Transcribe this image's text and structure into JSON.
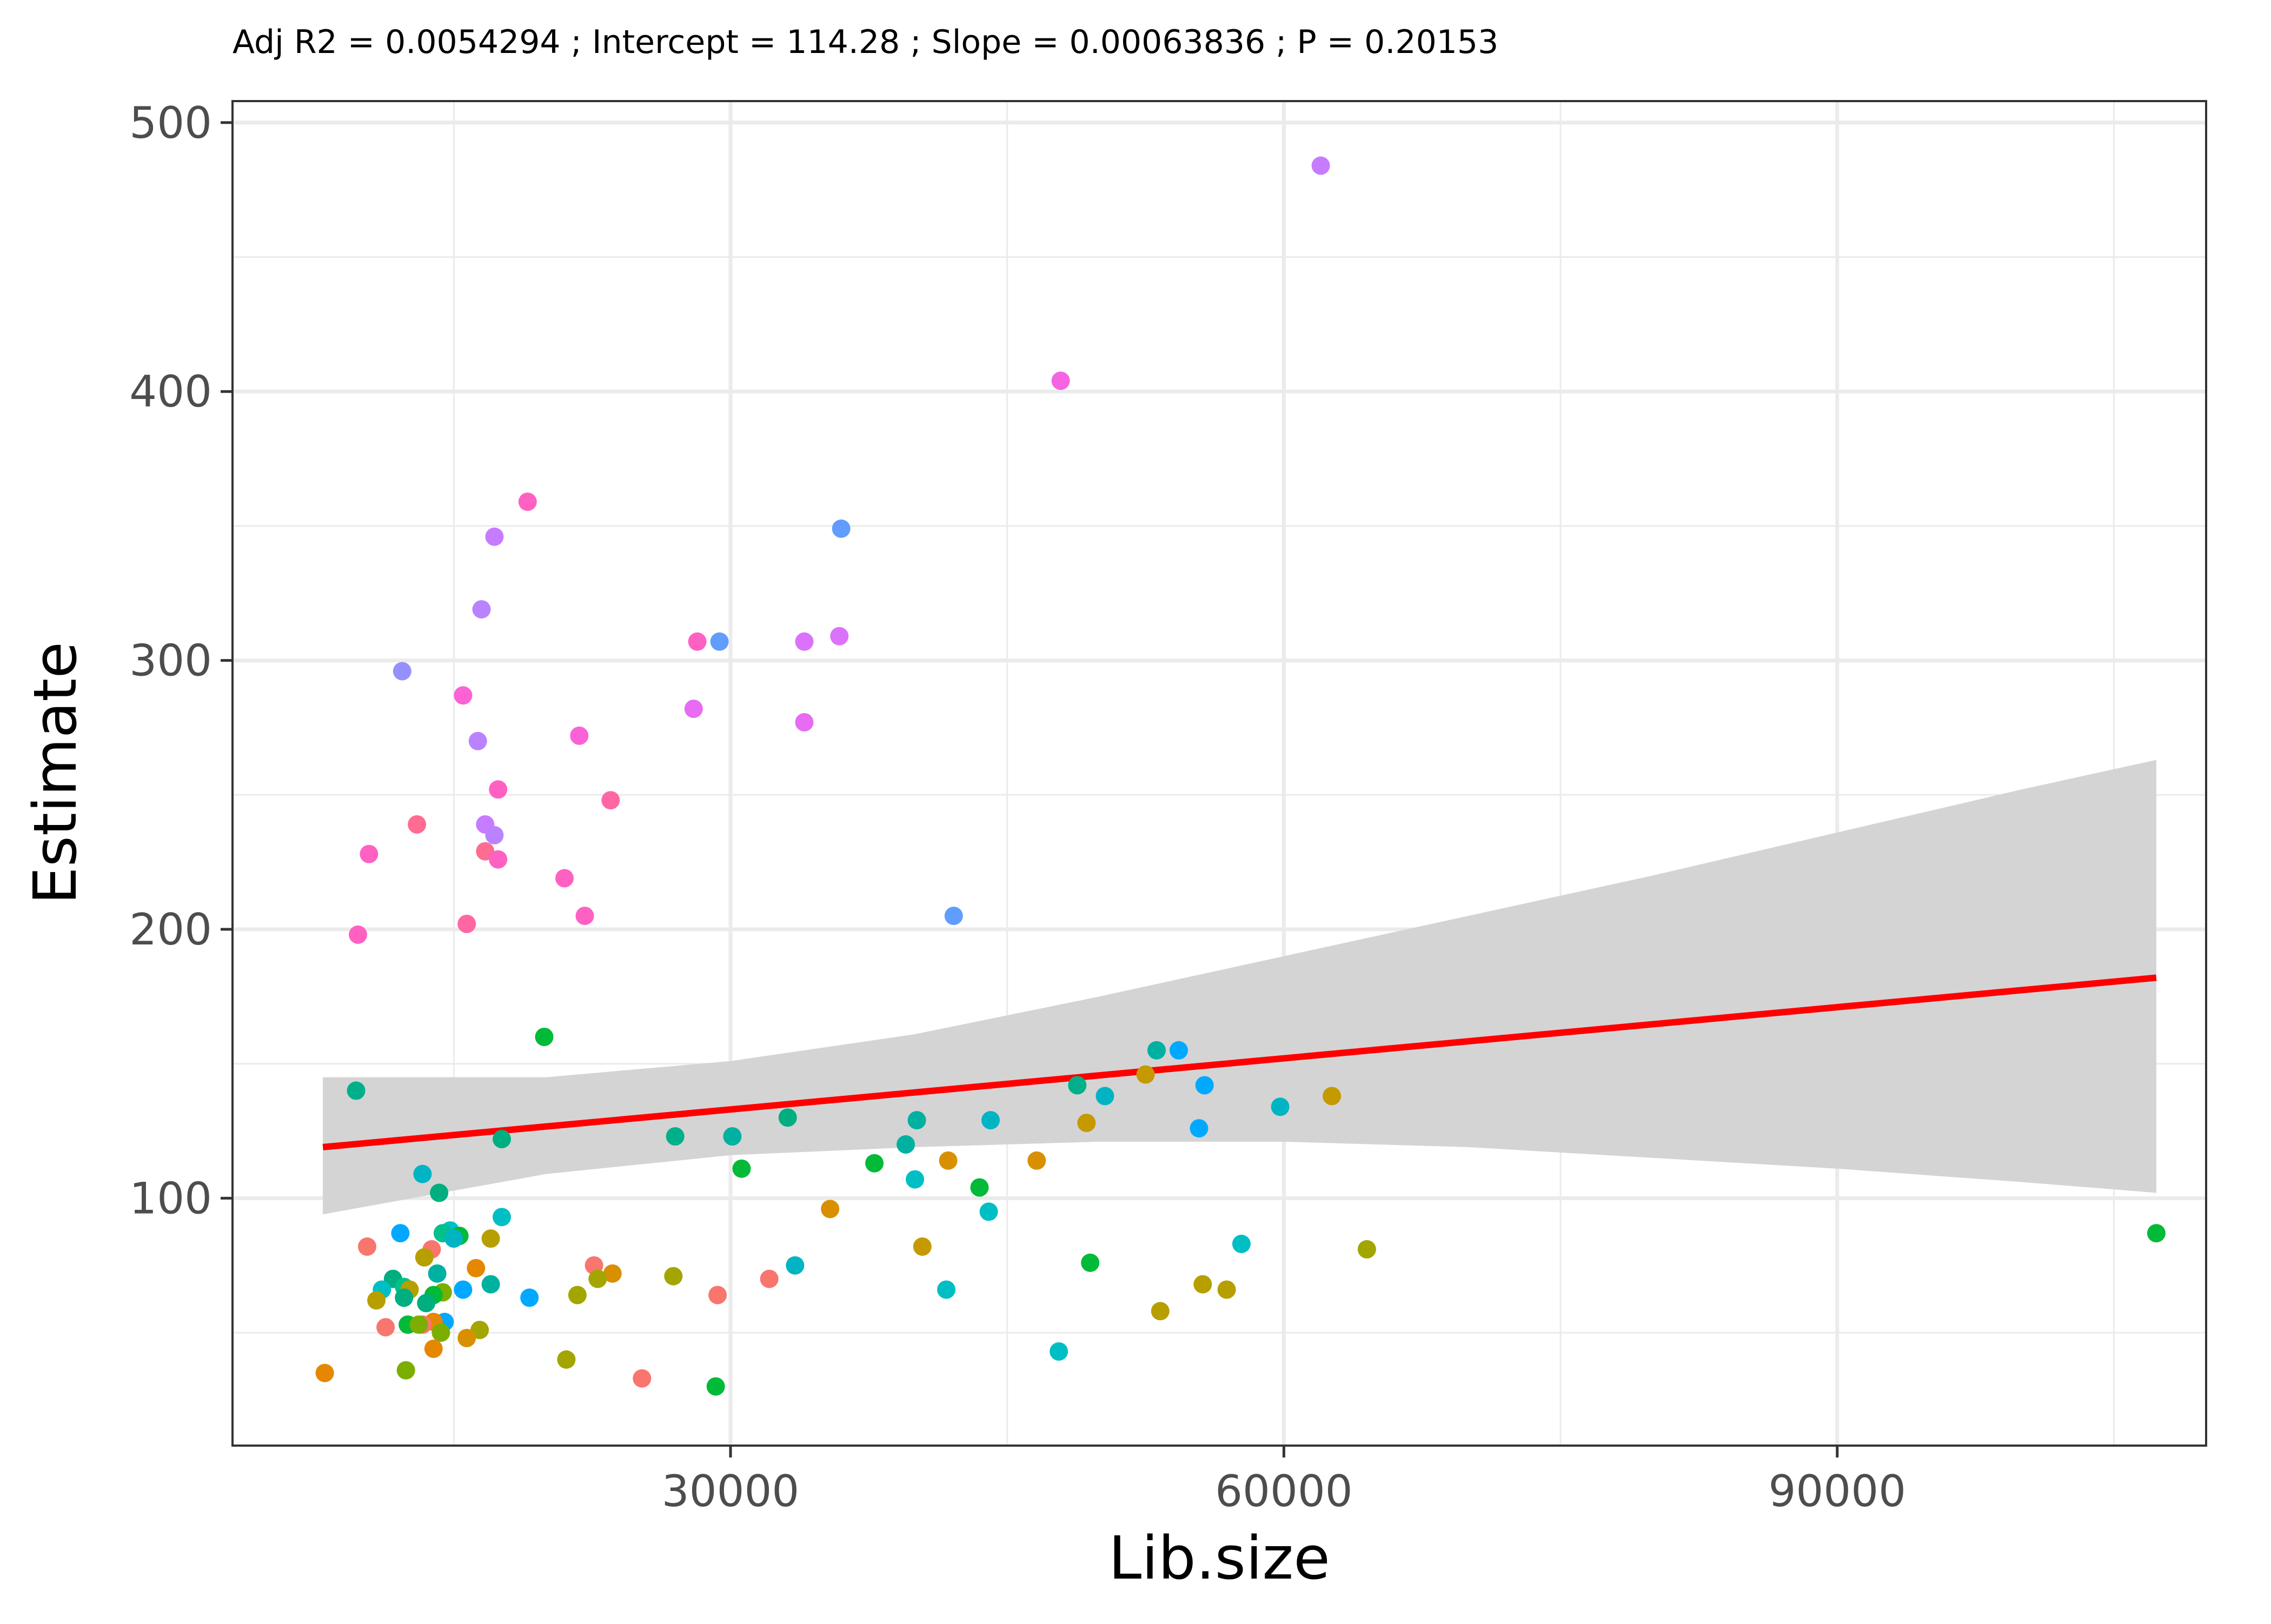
{
  "chart_data": {
    "type": "scatter",
    "title": "Adj R2 =  0.0054294 ; Intercept = 114.28 ; Slope = 0.00063836 ; P = 0.20153",
    "xlabel": "Lib.size",
    "ylabel": "Estimate",
    "xlim": [
      3000,
      110000
    ],
    "ylim": [
      8,
      508
    ],
    "x_ticks": [
      30000,
      60000,
      90000
    ],
    "y_ticks": [
      100,
      200,
      300,
      400,
      500
    ],
    "x_tick_labels": [
      "30000",
      "60000",
      "90000"
    ],
    "y_tick_labels": [
      "100",
      "200",
      "300",
      "400",
      "500"
    ],
    "grid": true,
    "legend": "none",
    "fit_line": {
      "color": "#ff0000",
      "x": [
        7900,
        107300
      ],
      "y": [
        119,
        182
      ]
    },
    "confidence_band": {
      "color": "#d4d4d4",
      "x": [
        7900,
        20000,
        30000,
        40000,
        50000,
        60000,
        70000,
        80000,
        90000,
        100000,
        107300
      ],
      "upper": [
        145,
        145,
        151,
        161,
        175,
        190,
        205,
        220,
        236,
        252,
        263
      ],
      "lower": [
        94,
        109,
        116,
        119,
        121,
        121,
        119,
        115,
        111,
        106,
        102
      ]
    },
    "points": [
      {
        "x": 62000,
        "y": 484,
        "color": "#c77cff"
      },
      {
        "x": 47900,
        "y": 404,
        "color": "#f564e3"
      },
      {
        "x": 19000,
        "y": 359,
        "color": "#ff61c3"
      },
      {
        "x": 36000,
        "y": 349,
        "color": "#619cff"
      },
      {
        "x": 17200,
        "y": 346,
        "color": "#c77cff"
      },
      {
        "x": 16500,
        "y": 319,
        "color": "#b983ff"
      },
      {
        "x": 35900,
        "y": 309,
        "color": "#db72fb"
      },
      {
        "x": 34000,
        "y": 307,
        "color": "#db72fb"
      },
      {
        "x": 29400,
        "y": 307,
        "color": "#619cff"
      },
      {
        "x": 28200,
        "y": 307,
        "color": "#ff61c3"
      },
      {
        "x": 12200,
        "y": 296,
        "color": "#9590ff"
      },
      {
        "x": 15500,
        "y": 287,
        "color": "#fc61d5"
      },
      {
        "x": 28000,
        "y": 282,
        "color": "#e76bf3"
      },
      {
        "x": 34000,
        "y": 277,
        "color": "#e76bf3"
      },
      {
        "x": 21800,
        "y": 272,
        "color": "#fc61d5"
      },
      {
        "x": 16300,
        "y": 270,
        "color": "#b983ff"
      },
      {
        "x": 17400,
        "y": 252,
        "color": "#ff61c3"
      },
      {
        "x": 23500,
        "y": 248,
        "color": "#ff67a4"
      },
      {
        "x": 13000,
        "y": 239,
        "color": "#ff6c91"
      },
      {
        "x": 16700,
        "y": 239,
        "color": "#c77cff"
      },
      {
        "x": 17200,
        "y": 235,
        "color": "#b983ff"
      },
      {
        "x": 16700,
        "y": 229,
        "color": "#ff6c91"
      },
      {
        "x": 10400,
        "y": 228,
        "color": "#ff61c3"
      },
      {
        "x": 17400,
        "y": 226,
        "color": "#ff61c3"
      },
      {
        "x": 21000,
        "y": 219,
        "color": "#ff61c3"
      },
      {
        "x": 22100,
        "y": 205,
        "color": "#ff61c3"
      },
      {
        "x": 42100,
        "y": 205,
        "color": "#619cff"
      },
      {
        "x": 15700,
        "y": 202,
        "color": "#ff67a4"
      },
      {
        "x": 9800,
        "y": 198,
        "color": "#ff61c3"
      },
      {
        "x": 19900,
        "y": 160,
        "color": "#00ba38"
      },
      {
        "x": 53100,
        "y": 155,
        "color": "#00b0a0"
      },
      {
        "x": 54300,
        "y": 155,
        "color": "#00a9ff"
      },
      {
        "x": 52500,
        "y": 146,
        "color": "#c49a00"
      },
      {
        "x": 48800,
        "y": 142,
        "color": "#00b08b"
      },
      {
        "x": 55700,
        "y": 142,
        "color": "#00a9ff"
      },
      {
        "x": 9700,
        "y": 140,
        "color": "#00b08b"
      },
      {
        "x": 50300,
        "y": 138,
        "color": "#00b4c4"
      },
      {
        "x": 62600,
        "y": 138,
        "color": "#c49a00"
      },
      {
        "x": 59800,
        "y": 134,
        "color": "#00b4c4"
      },
      {
        "x": 33100,
        "y": 130,
        "color": "#00ae7f"
      },
      {
        "x": 44100,
        "y": 129,
        "color": "#00b4c4"
      },
      {
        "x": 40100,
        "y": 129,
        "color": "#00b0a0"
      },
      {
        "x": 49300,
        "y": 128,
        "color": "#c49a00"
      },
      {
        "x": 55400,
        "y": 126,
        "color": "#00a9ff"
      },
      {
        "x": 27000,
        "y": 123,
        "color": "#00b08b"
      },
      {
        "x": 30100,
        "y": 123,
        "color": "#00b0a0"
      },
      {
        "x": 17600,
        "y": 122,
        "color": "#00ae7f"
      },
      {
        "x": 39500,
        "y": 120,
        "color": "#00b0a0"
      },
      {
        "x": 41800,
        "y": 114,
        "color": "#d89000"
      },
      {
        "x": 46600,
        "y": 114,
        "color": "#d89000"
      },
      {
        "x": 37800,
        "y": 113,
        "color": "#00ba38"
      },
      {
        "x": 30600,
        "y": 111,
        "color": "#00ba38"
      },
      {
        "x": 13300,
        "y": 109,
        "color": "#00b4c4"
      },
      {
        "x": 40000,
        "y": 107,
        "color": "#00bfc4"
      },
      {
        "x": 43500,
        "y": 104,
        "color": "#00ba38"
      },
      {
        "x": 14200,
        "y": 102,
        "color": "#00ae7f"
      },
      {
        "x": 35400,
        "y": 96,
        "color": "#d89000"
      },
      {
        "x": 44000,
        "y": 95,
        "color": "#00bfc4"
      },
      {
        "x": 17600,
        "y": 93,
        "color": "#00bfc4"
      },
      {
        "x": 14800,
        "y": 88,
        "color": "#00bfc4"
      },
      {
        "x": 107300,
        "y": 87,
        "color": "#00ba38"
      },
      {
        "x": 12100,
        "y": 87,
        "color": "#00a9ff"
      },
      {
        "x": 14400,
        "y": 87,
        "color": "#00c08b"
      },
      {
        "x": 15300,
        "y": 86,
        "color": "#00ba38"
      },
      {
        "x": 15000,
        "y": 85,
        "color": "#00b4c4"
      },
      {
        "x": 17000,
        "y": 85,
        "color": "#b79f00"
      },
      {
        "x": 57700,
        "y": 83,
        "color": "#00bfc4"
      },
      {
        "x": 40400,
        "y": 82,
        "color": "#c49a00"
      },
      {
        "x": 10300,
        "y": 82,
        "color": "#f8766d"
      },
      {
        "x": 13800,
        "y": 81,
        "color": "#f8766d"
      },
      {
        "x": 64500,
        "y": 81,
        "color": "#a3a500"
      },
      {
        "x": 13400,
        "y": 78,
        "color": "#b79f00"
      },
      {
        "x": 49500,
        "y": 76,
        "color": "#00ba38"
      },
      {
        "x": 22600,
        "y": 75,
        "color": "#f8766d"
      },
      {
        "x": 33500,
        "y": 75,
        "color": "#00b4c4"
      },
      {
        "x": 16200,
        "y": 74,
        "color": "#e58700"
      },
      {
        "x": 14100,
        "y": 72,
        "color": "#00b0a0"
      },
      {
        "x": 23600,
        "y": 72,
        "color": "#d89000"
      },
      {
        "x": 26900,
        "y": 71,
        "color": "#a3a500"
      },
      {
        "x": 11700,
        "y": 70,
        "color": "#00ae7f"
      },
      {
        "x": 22800,
        "y": 70,
        "color": "#a3a500"
      },
      {
        "x": 32100,
        "y": 70,
        "color": "#f8766d"
      },
      {
        "x": 17000,
        "y": 68,
        "color": "#00b0a0"
      },
      {
        "x": 12300,
        "y": 67,
        "color": "#00c08b"
      },
      {
        "x": 55600,
        "y": 68,
        "color": "#b79f00"
      },
      {
        "x": 11100,
        "y": 66,
        "color": "#00bfc4"
      },
      {
        "x": 12600,
        "y": 66,
        "color": "#b79f00"
      },
      {
        "x": 15500,
        "y": 66,
        "color": "#00a9ff"
      },
      {
        "x": 41700,
        "y": 66,
        "color": "#00bfc4"
      },
      {
        "x": 56900,
        "y": 66,
        "color": "#b79f00"
      },
      {
        "x": 14400,
        "y": 65,
        "color": "#7cae00"
      },
      {
        "x": 13900,
        "y": 64,
        "color": "#00ba38"
      },
      {
        "x": 21700,
        "y": 64,
        "color": "#a3a500"
      },
      {
        "x": 29300,
        "y": 64,
        "color": "#f8766d"
      },
      {
        "x": 19100,
        "y": 63,
        "color": "#00a9ff"
      },
      {
        "x": 12300,
        "y": 63,
        "color": "#00ae7f"
      },
      {
        "x": 10800,
        "y": 62,
        "color": "#b79f00"
      },
      {
        "x": 13500,
        "y": 61,
        "color": "#00ae7f"
      },
      {
        "x": 53300,
        "y": 58,
        "color": "#b79f00"
      },
      {
        "x": 14500,
        "y": 54,
        "color": "#00a9ff"
      },
      {
        "x": 13900,
        "y": 54,
        "color": "#e58700"
      },
      {
        "x": 12500,
        "y": 53,
        "color": "#00ba38"
      },
      {
        "x": 13300,
        "y": 53,
        "color": "#f8766d"
      },
      {
        "x": 13100,
        "y": 53,
        "color": "#7cae00"
      },
      {
        "x": 11300,
        "y": 52,
        "color": "#f8766d"
      },
      {
        "x": 16400,
        "y": 51,
        "color": "#a3a500"
      },
      {
        "x": 14300,
        "y": 50,
        "color": "#7cae00"
      },
      {
        "x": 15700,
        "y": 48,
        "color": "#d89000"
      },
      {
        "x": 13900,
        "y": 44,
        "color": "#e58700"
      },
      {
        "x": 47800,
        "y": 43,
        "color": "#00bfc4"
      },
      {
        "x": 21100,
        "y": 40,
        "color": "#a3a500"
      },
      {
        "x": 12400,
        "y": 36,
        "color": "#7cae00"
      },
      {
        "x": 8000,
        "y": 35,
        "color": "#e58700"
      },
      {
        "x": 25200,
        "y": 33,
        "color": "#f8766d"
      },
      {
        "x": 29200,
        "y": 30,
        "color": "#00ba38"
      }
    ]
  }
}
